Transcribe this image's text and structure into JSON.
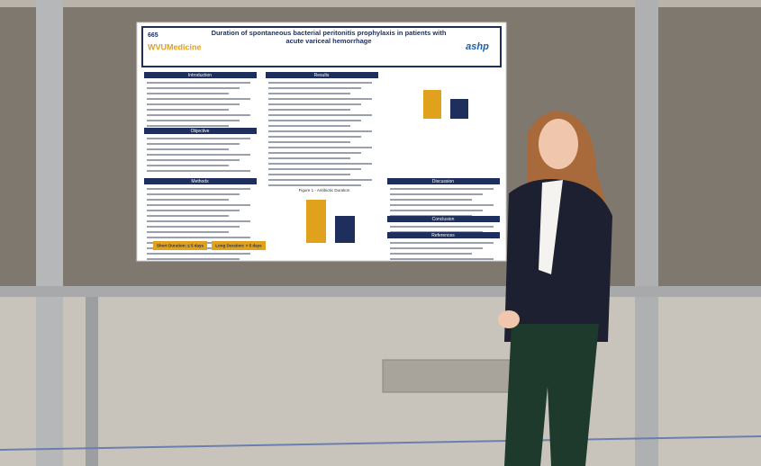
{
  "poster": {
    "number": "665",
    "logo": "WVUMedicine",
    "title": "Duration of spontaneous bacterial peritonitis prophylaxis in patients with acute variceal hemorrhage",
    "sponsor": "ashp",
    "sections": [
      "Introduction",
      "Objective",
      "Methods",
      "Results",
      "Discussion",
      "Conclusion",
      "References"
    ],
    "groups": [
      "Short Duration: ≤ 5 days",
      "Long Duration: > 5 days"
    ],
    "figure": "Figure 1 - Antibiotic Duration"
  }
}
